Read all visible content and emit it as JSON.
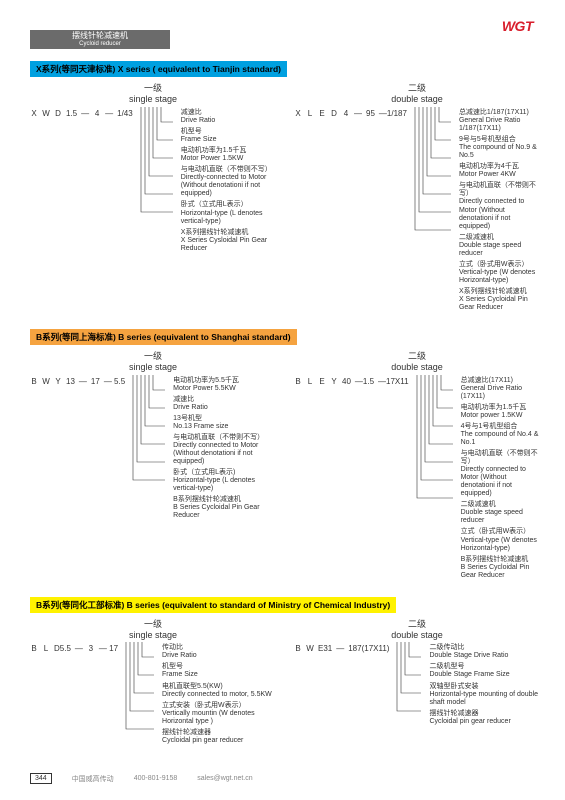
{
  "logo": "WGT",
  "headerBar": {
    "cn": "摆线针轮减速机",
    "sub": "Cycloid reducer"
  },
  "sections": [
    {
      "titleClass": "title-blue",
      "title": "X系列(等同天津标准)   X series ( equivalent to Tianjin standard)",
      "stages": [
        {
          "header": {
            "cn": "一级",
            "en": "single stage"
          },
          "codes": [
            "X",
            "W",
            "D",
            "1.5",
            "—",
            "4",
            "—",
            "1/43"
          ],
          "defs": [
            {
              "cn": "减速比",
              "en": "Drive Ratio"
            },
            {
              "cn": "机型号",
              "en": "Frame Size"
            },
            {
              "cn": "电动机功率为1.5千瓦",
              "en": "Motor Power 1.5KW"
            },
            {
              "cn": "与电动机直联（不带则不写）",
              "en": "Directly-connected to Motor\n(Without denotationi if not equipped)"
            },
            {
              "cn": "卧式（立式用L表示）",
              "en": "Horizontal-type (L denotes vertical-type)"
            },
            {
              "cn": "X系列摆线针轮减速机",
              "en": "X Series Cysloidal Pin Gear Reducer"
            }
          ]
        },
        {
          "header": {
            "cn": "二级",
            "en": "double stage"
          },
          "codes": [
            "X",
            "L",
            "E",
            "D",
            "4",
            "—",
            "95",
            "—1/187"
          ],
          "defs": [
            {
              "cn": "总减速比1/187(17X11)",
              "en": "General Drive Ratio 1/187(17X11)"
            },
            {
              "cn": "9号与5号机型组合",
              "en": "The compound of No.9 & No.5"
            },
            {
              "cn": "电动机功率为4千瓦",
              "en": "Motor Power 4KW"
            },
            {
              "cn": "与电动机直联（不带则不写）",
              "en": "Directly connected to Motor\n(Without denotationi if not equipped)"
            },
            {
              "cn": "二级减速机",
              "en": "Double stage speed reducer"
            },
            {
              "cn": "立式（卧式用W表示）",
              "en": "Vertical-type (W denotes Horizontal-type)"
            },
            {
              "cn": "X系列摆线针轮减速机",
              "en": "X Series Cycloidal Pin Gear Reducer"
            }
          ]
        }
      ]
    },
    {
      "titleClass": "title-orange",
      "title": "B系列(等同上海标准)   B series (equivalent to Shanghai standard)",
      "stages": [
        {
          "header": {
            "cn": "一级",
            "en": "single stage"
          },
          "codes": [
            "B",
            "W",
            "Y",
            "13",
            "—",
            "17",
            "— 5.5"
          ],
          "defs": [
            {
              "cn": "电动机功率为5.5千瓦",
              "en": "Motor Power 5.5KW"
            },
            {
              "cn": "减速比",
              "en": "Drive Ratio"
            },
            {
              "cn": "13号机型",
              "en": "No.13 Frame size"
            },
            {
              "cn": "与电动机直联（不带则不写）",
              "en": "Directly connected to Motor\n(Without denotationi if not equipped)"
            },
            {
              "cn": "卧式（立式用L表示)",
              "en": "Horizontal-type (L denotes vertical-type)"
            },
            {
              "cn": "B系列摆线针轮减速机",
              "en": "B Series Cycloidal Pin Gear Reducer"
            }
          ]
        },
        {
          "header": {
            "cn": "二级",
            "en": "double stage"
          },
          "codes": [
            "B",
            "L",
            "E",
            "Y",
            "40",
            "—1.5",
            "—17X11"
          ],
          "defs": [
            {
              "cn": "总减速比(17X11)",
              "en": "General Drive Ratio (17X11)"
            },
            {
              "cn": "电动机功率为1.5千瓦",
              "en": "Motor power 1.5KW"
            },
            {
              "cn": "4号与1号机型组合",
              "en": "The compound of No.4 & No.1"
            },
            {
              "cn": "与电动机直联（不带则不写）",
              "en": "Directly connected to Motor\n(Without denotationi if not equipped)"
            },
            {
              "cn": "二级减速机",
              "en": "Duoble stage speed reducer"
            },
            {
              "cn": "立式（卧式用W表示）",
              "en": "Vertical-type (W denotes Horizontal-type)"
            },
            {
              "cn": "B系列摆线针轮减速机",
              "en": "B Series Cycloidal Pin Gear Reducer"
            }
          ]
        }
      ]
    },
    {
      "titleClass": "title-yellow",
      "title": "B系列(等同化工部标准)   B series (equivalent to standard of Ministry of Chemical Industry)",
      "stages": [
        {
          "header": {
            "cn": "一级",
            "en": "single stage"
          },
          "codes": [
            "B",
            "L",
            "D5.5",
            "—",
            "3",
            "— 17"
          ],
          "defs": [
            {
              "cn": "传动比",
              "en": "Drive Ratio"
            },
            {
              "cn": "机型号",
              "en": "Frame Size"
            },
            {
              "cn": "电机直联型5.5(KW)",
              "en": "Directly connected to motor, 5.5KW"
            },
            {
              "cn": "立式安装（卧式用W表示）",
              "en": "Vertically mountin\n(W denotes Horizontal type )"
            },
            {
              "cn": "摆线针轮减速器",
              "en": "Cycloidal pin gear reducer"
            }
          ]
        },
        {
          "header": {
            "cn": "二级",
            "en": "double stage"
          },
          "codes": [
            "B",
            "W",
            "E31",
            "—",
            "187(17X11)"
          ],
          "defs": [
            {
              "cn": "二级传动比",
              "en": "Double Stage Drive Ratio"
            },
            {
              "cn": "二级机型号",
              "en": "Double Stage Frame Size"
            },
            {
              "cn": "双轴型卧式安装",
              "en": "Horizontal-type mounting of\ndouble shaft model"
            },
            {
              "cn": "摆线针轮减速器",
              "en": "Cycloidal pin gear reducer"
            }
          ]
        }
      ]
    }
  ],
  "footer": {
    "page": "344",
    "company": "中国威高传动",
    "phone": "400-801-9158",
    "email": "sales@wgt.net.cn"
  },
  "colors": {
    "logo": "#d81e2c",
    "headerBar": "#6b6b6b",
    "line": "#333333"
  }
}
